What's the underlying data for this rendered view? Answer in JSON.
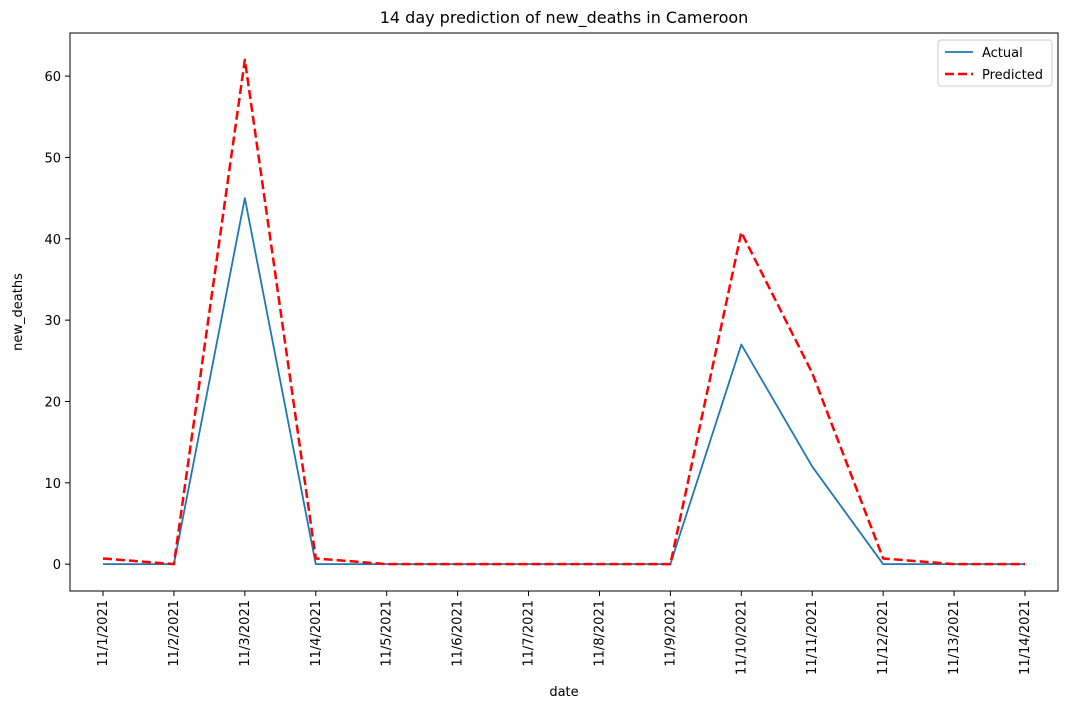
{
  "chart_data": {
    "type": "line",
    "title": "14 day prediction of new_deaths in Cameroon",
    "xlabel": "date",
    "ylabel": "new_deaths",
    "categories": [
      "11/1/2021",
      "11/2/2021",
      "11/3/2021",
      "11/4/2021",
      "11/5/2021",
      "11/6/2021",
      "11/7/2021",
      "11/8/2021",
      "11/9/2021",
      "11/10/2021",
      "11/11/2021",
      "11/12/2021",
      "11/13/2021",
      "11/14/2021"
    ],
    "ylim": [
      -3.3,
      65.3
    ],
    "yticks": [
      0,
      10,
      20,
      30,
      40,
      50,
      60
    ],
    "grid": false,
    "legend_position": "top-right",
    "series": [
      {
        "name": "Actual",
        "color": "#1f77b4",
        "style": "solid",
        "values": [
          0,
          0,
          45,
          0,
          0,
          0,
          0,
          0,
          0,
          27,
          12,
          0,
          0,
          0
        ]
      },
      {
        "name": "Predicted",
        "color": "#ff0000",
        "style": "dashed",
        "values": [
          0.7,
          0,
          62,
          0.7,
          0,
          0,
          0,
          0,
          0,
          40.8,
          23.5,
          0.7,
          0,
          0
        ]
      }
    ]
  }
}
